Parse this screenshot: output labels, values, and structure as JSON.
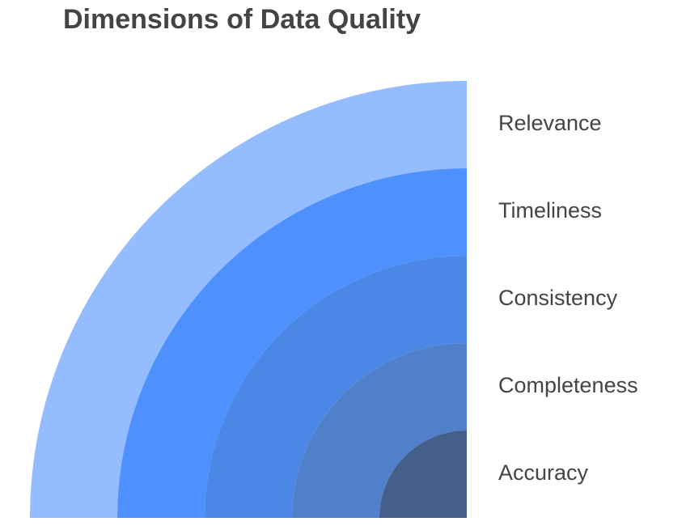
{
  "title": "Dimensions of Data Quality",
  "layers": [
    {
      "label": "Relevance"
    },
    {
      "label": "Timeliness"
    },
    {
      "label": "Consistency"
    },
    {
      "label": "Completeness"
    },
    {
      "label": "Accuracy"
    }
  ]
}
